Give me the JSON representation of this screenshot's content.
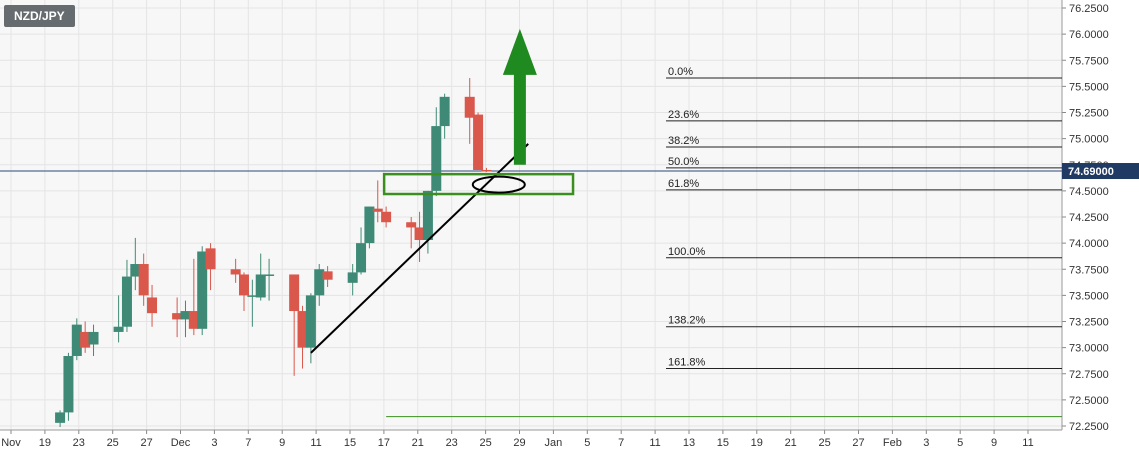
{
  "symbol": "NZD/JPY",
  "colors": {
    "up": "#3f8a76",
    "down": "#d9574b",
    "fib_line": "#222222",
    "box": "#3b8f1f",
    "arrow": "#1f8a1f",
    "plot_bg": "#f7f7f7",
    "grid": "#e4e4e4",
    "price_tag": "#1f3a63"
  },
  "chart_data": {
    "type": "candlestick",
    "title": "",
    "ylim": [
      72.25,
      76.25
    ],
    "y_ticks": [
      "76.2500",
      "76.0000",
      "75.7500",
      "75.5000",
      "75.2500",
      "75.0000",
      "74.7500",
      "74.5000",
      "74.2500",
      "74.0000",
      "73.7500",
      "73.5000",
      "73.2500",
      "73.0000",
      "72.7500",
      "72.5000",
      "72.2500"
    ],
    "x_tick_labels": [
      "Nov",
      "19",
      "23",
      "25",
      "27",
      "Dec",
      "3",
      "7",
      "9",
      "11",
      "15",
      "17",
      "21",
      "23",
      "25",
      "29",
      "Jan",
      "5",
      "7",
      "11",
      "13",
      "15",
      "19",
      "21",
      "25",
      "27",
      "Feb",
      "3",
      "5",
      "9",
      "11"
    ],
    "candles": [
      {
        "date": "2021-11-22",
        "open": 72.28,
        "high": 72.4,
        "low": 72.24,
        "close": 72.38
      },
      {
        "date": "2021-11-23",
        "open": 72.38,
        "high": 72.95,
        "low": 72.3,
        "close": 72.92
      },
      {
        "date": "2021-11-24",
        "open": 72.92,
        "high": 73.28,
        "low": 72.88,
        "close": 73.22
      },
      {
        "date": "2021-11-25",
        "open": 73.15,
        "high": 73.25,
        "low": 72.95,
        "close": 73.0
      },
      {
        "date": "2021-11-26",
        "open": 73.03,
        "high": 73.22,
        "low": 72.92,
        "close": 73.15
      },
      {
        "date": "2021-11-29",
        "open": 73.15,
        "high": 73.5,
        "low": 73.05,
        "close": 73.2
      },
      {
        "date": "2021-11-30",
        "open": 73.2,
        "high": 73.84,
        "low": 73.15,
        "close": 73.68
      },
      {
        "date": "2021-12-01",
        "open": 73.68,
        "high": 74.05,
        "low": 73.55,
        "close": 73.8
      },
      {
        "date": "2021-12-02",
        "open": 73.8,
        "high": 73.9,
        "low": 73.4,
        "close": 73.5
      },
      {
        "date": "2021-12-03",
        "open": 73.48,
        "high": 73.6,
        "low": 73.2,
        "close": 73.33
      },
      {
        "date": "2021-12-06",
        "open": 73.33,
        "high": 73.48,
        "low": 73.1,
        "close": 73.27
      },
      {
        "date": "2021-12-07",
        "open": 73.27,
        "high": 73.45,
        "low": 73.1,
        "close": 73.35
      },
      {
        "date": "2021-12-08",
        "open": 73.35,
        "high": 73.85,
        "low": 73.12,
        "close": 73.18
      },
      {
        "date": "2021-12-09",
        "open": 73.18,
        "high": 73.97,
        "low": 73.12,
        "close": 73.92
      },
      {
        "date": "2021-12-10",
        "open": 73.95,
        "high": 74.0,
        "low": 73.55,
        "close": 73.75
      },
      {
        "date": "2021-12-13",
        "open": 73.75,
        "high": 73.85,
        "low": 73.62,
        "close": 73.7
      },
      {
        "date": "2021-12-14",
        "open": 73.7,
        "high": 73.72,
        "low": 73.35,
        "close": 73.5
      },
      {
        "date": "2021-12-15",
        "open": 73.5,
        "high": 73.65,
        "low": 73.2,
        "close": 73.5
      },
      {
        "date": "2021-12-16",
        "open": 73.48,
        "high": 73.9,
        "low": 73.45,
        "close": 73.7
      },
      {
        "date": "2021-12-17",
        "open": 73.7,
        "high": 73.85,
        "low": 73.45,
        "close": 73.7
      },
      {
        "date": "2021-12-20",
        "open": 73.7,
        "high": 73.7,
        "low": 72.73,
        "close": 73.35
      },
      {
        "date": "2021-12-21",
        "open": 73.35,
        "high": 73.4,
        "low": 72.8,
        "close": 73.0
      },
      {
        "date": "2021-12-22",
        "open": 73.0,
        "high": 73.52,
        "low": 72.85,
        "close": 73.5
      },
      {
        "date": "2021-12-23",
        "open": 73.5,
        "high": 73.8,
        "low": 73.4,
        "close": 73.75
      },
      {
        "date": "2021-12-24",
        "open": 73.73,
        "high": 73.78,
        "low": 73.58,
        "close": 73.65
      },
      {
        "date": "2021-12-27",
        "open": 73.62,
        "high": 73.8,
        "low": 73.5,
        "close": 73.72
      },
      {
        "date": "2021-12-28",
        "open": 73.72,
        "high": 74.15,
        "low": 73.7,
        "close": 74.0
      },
      {
        "date": "2021-12-29",
        "open": 74.0,
        "high": 74.35,
        "low": 73.95,
        "close": 74.35
      },
      {
        "date": "2021-12-30",
        "open": 74.33,
        "high": 74.6,
        "low": 74.2,
        "close": 74.3
      },
      {
        "date": "2021-12-31",
        "open": 74.3,
        "high": 74.35,
        "low": 74.15,
        "close": 74.2
      },
      {
        "date": "2022-01-03",
        "open": 74.2,
        "high": 74.25,
        "low": 73.95,
        "close": 74.15
      },
      {
        "date": "2022-01-04",
        "open": 74.15,
        "high": 74.3,
        "low": 73.82,
        "close": 74.03
      },
      {
        "date": "2022-01-05",
        "open": 74.03,
        "high": 74.5,
        "low": 73.9,
        "close": 74.5
      },
      {
        "date": "2022-01-06",
        "open": 74.5,
        "high": 75.3,
        "low": 74.45,
        "close": 75.12
      },
      {
        "date": "2022-01-07",
        "open": 75.12,
        "high": 75.43,
        "low": 75.0,
        "close": 75.4
      },
      {
        "date": "2022-01-10",
        "open": 75.4,
        "high": 75.58,
        "low": 74.95,
        "close": 75.2
      },
      {
        "date": "2022-01-11",
        "open": 75.23,
        "high": 75.25,
        "low": 74.7,
        "close": 74.7
      },
      {
        "date": "2022-01-12",
        "open": 74.7,
        "high": 74.72,
        "low": 74.68,
        "close": 74.69
      }
    ],
    "fibonacci": [
      {
        "label": "0.0%",
        "price": 75.58
      },
      {
        "label": "23.6%",
        "price": 75.17
      },
      {
        "label": "38.2%",
        "price": 74.92
      },
      {
        "label": "50.0%",
        "price": 74.72
      },
      {
        "label": "61.8%",
        "price": 74.51
      },
      {
        "label": "100.0%",
        "price": 73.86
      },
      {
        "label": "138.2%",
        "price": 73.2
      },
      {
        "label": "161.8%",
        "price": 72.8
      }
    ],
    "current_price": "74.69000",
    "current_price_value": 74.69,
    "trendline": {
      "from": {
        "date": "2021-12-22",
        "price": 72.95
      },
      "to": {
        "date": "2022-01-17",
        "price": 74.95
      }
    },
    "highlight_box": {
      "from": "2021-12-31",
      "to": "2022-01-22",
      "price_low": 74.47,
      "price_high": 74.66
    },
    "highlight_ellipse": {
      "center_date": "2022-01-13",
      "price": 74.56
    },
    "arrow": {
      "date": "2022-01-16",
      "from_price": 74.75,
      "to_price": 76.05
    },
    "bottom_line": {
      "from": "2021-12-31",
      "price": 72.34
    }
  }
}
